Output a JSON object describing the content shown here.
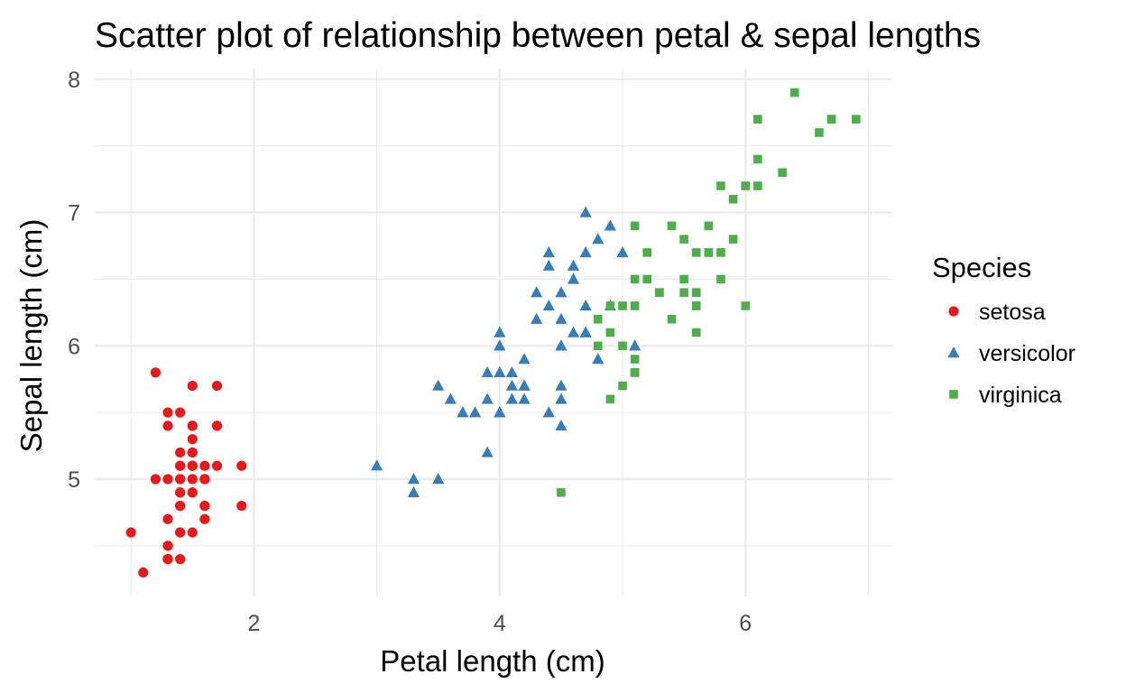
{
  "chart_data": {
    "type": "scatter",
    "title": "Scatter plot of relationship between petal & sepal lengths",
    "xlabel": "Petal length (cm)",
    "ylabel": "Sepal length (cm)",
    "xlim": [
      0.705,
      7.195
    ],
    "ylim": [
      4.12,
      8.08
    ],
    "x_ticks": [
      2,
      4,
      6
    ],
    "y_ticks": [
      5,
      6,
      7,
      8
    ],
    "x_tick_labels": [
      "2",
      "4",
      "6"
    ],
    "y_tick_labels": [
      "5",
      "6",
      "7",
      "8"
    ],
    "grid": true,
    "legend_position": "right",
    "legend_title": "Species",
    "series": [
      {
        "name": "setosa",
        "marker": "circle",
        "color": "#E41A1C",
        "points": [
          [
            1.4,
            5.1
          ],
          [
            1.4,
            4.9
          ],
          [
            1.3,
            4.7
          ],
          [
            1.5,
            4.6
          ],
          [
            1.4,
            5.0
          ],
          [
            1.7,
            5.4
          ],
          [
            1.4,
            4.6
          ],
          [
            1.5,
            5.0
          ],
          [
            1.4,
            4.4
          ],
          [
            1.5,
            4.9
          ],
          [
            1.5,
            5.4
          ],
          [
            1.6,
            4.8
          ],
          [
            1.4,
            4.8
          ],
          [
            1.1,
            4.3
          ],
          [
            1.2,
            5.8
          ],
          [
            1.5,
            5.7
          ],
          [
            1.3,
            5.4
          ],
          [
            1.4,
            5.1
          ],
          [
            1.7,
            5.7
          ],
          [
            1.5,
            5.1
          ],
          [
            1.7,
            5.4
          ],
          [
            1.5,
            5.1
          ],
          [
            1.0,
            4.6
          ],
          [
            1.7,
            5.1
          ],
          [
            1.9,
            4.8
          ],
          [
            1.6,
            5.0
          ],
          [
            1.6,
            5.0
          ],
          [
            1.5,
            5.2
          ],
          [
            1.4,
            5.2
          ],
          [
            1.6,
            4.7
          ],
          [
            1.6,
            4.8
          ],
          [
            1.5,
            5.4
          ],
          [
            1.5,
            5.2
          ],
          [
            1.4,
            5.5
          ],
          [
            1.5,
            4.9
          ],
          [
            1.2,
            5.0
          ],
          [
            1.3,
            5.5
          ],
          [
            1.4,
            4.9
          ],
          [
            1.3,
            4.4
          ],
          [
            1.5,
            5.1
          ],
          [
            1.3,
            5.0
          ],
          [
            1.3,
            4.5
          ],
          [
            1.3,
            4.4
          ],
          [
            1.6,
            5.0
          ],
          [
            1.9,
            5.1
          ],
          [
            1.4,
            4.8
          ],
          [
            1.6,
            5.1
          ],
          [
            1.4,
            4.6
          ],
          [
            1.5,
            5.3
          ],
          [
            1.4,
            5.0
          ]
        ]
      },
      {
        "name": "versicolor",
        "marker": "triangle",
        "color": "#377EB8",
        "points": [
          [
            4.7,
            7.0
          ],
          [
            4.5,
            6.4
          ],
          [
            4.9,
            6.9
          ],
          [
            4.0,
            5.5
          ],
          [
            4.6,
            6.5
          ],
          [
            4.5,
            5.7
          ],
          [
            4.7,
            6.3
          ],
          [
            3.3,
            4.9
          ],
          [
            4.6,
            6.6
          ],
          [
            3.9,
            5.2
          ],
          [
            3.5,
            5.0
          ],
          [
            4.2,
            5.9
          ],
          [
            4.0,
            6.0
          ],
          [
            4.7,
            6.1
          ],
          [
            3.6,
            5.6
          ],
          [
            4.4,
            6.7
          ],
          [
            4.5,
            5.6
          ],
          [
            4.1,
            5.8
          ],
          [
            4.5,
            6.2
          ],
          [
            3.9,
            5.6
          ],
          [
            4.8,
            5.9
          ],
          [
            4.0,
            6.1
          ],
          [
            4.9,
            6.3
          ],
          [
            4.7,
            6.1
          ],
          [
            4.3,
            6.4
          ],
          [
            4.4,
            6.6
          ],
          [
            4.8,
            6.8
          ],
          [
            5.0,
            6.7
          ],
          [
            4.5,
            6.0
          ],
          [
            3.5,
            5.7
          ],
          [
            3.8,
            5.5
          ],
          [
            3.7,
            5.5
          ],
          [
            3.9,
            5.8
          ],
          [
            5.1,
            6.0
          ],
          [
            4.5,
            5.4
          ],
          [
            4.5,
            6.0
          ],
          [
            4.7,
            6.7
          ],
          [
            4.4,
            6.3
          ],
          [
            4.1,
            5.6
          ],
          [
            4.0,
            5.5
          ],
          [
            4.4,
            5.5
          ],
          [
            4.6,
            6.1
          ],
          [
            4.0,
            5.8
          ],
          [
            3.3,
            5.0
          ],
          [
            4.2,
            5.6
          ],
          [
            4.2,
            5.7
          ],
          [
            4.2,
            5.7
          ],
          [
            4.3,
            6.2
          ],
          [
            3.0,
            5.1
          ],
          [
            4.1,
            5.7
          ]
        ]
      },
      {
        "name": "virginica",
        "marker": "square",
        "color": "#4DAF4A",
        "points": [
          [
            6.0,
            6.3
          ],
          [
            5.1,
            5.8
          ],
          [
            5.9,
            7.1
          ],
          [
            5.6,
            6.3
          ],
          [
            5.8,
            6.5
          ],
          [
            6.6,
            7.6
          ],
          [
            4.5,
            4.9
          ],
          [
            6.3,
            7.3
          ],
          [
            5.8,
            6.7
          ],
          [
            6.1,
            7.2
          ],
          [
            5.1,
            6.5
          ],
          [
            5.3,
            6.4
          ],
          [
            5.5,
            6.8
          ],
          [
            5.0,
            5.7
          ],
          [
            5.1,
            5.8
          ],
          [
            5.3,
            6.4
          ],
          [
            5.5,
            6.5
          ],
          [
            6.7,
            7.7
          ],
          [
            6.9,
            7.7
          ],
          [
            5.0,
            6.0
          ],
          [
            5.7,
            6.9
          ],
          [
            4.9,
            5.6
          ],
          [
            6.7,
            7.7
          ],
          [
            4.9,
            6.3
          ],
          [
            5.7,
            6.7
          ],
          [
            6.0,
            7.2
          ],
          [
            4.8,
            6.2
          ],
          [
            4.9,
            6.1
          ],
          [
            5.6,
            6.4
          ],
          [
            5.8,
            7.2
          ],
          [
            6.1,
            7.4
          ],
          [
            6.4,
            7.9
          ],
          [
            5.6,
            6.4
          ],
          [
            5.1,
            6.3
          ],
          [
            5.6,
            6.1
          ],
          [
            6.1,
            7.7
          ],
          [
            5.6,
            6.3
          ],
          [
            5.5,
            6.4
          ],
          [
            4.8,
            6.0
          ],
          [
            5.4,
            6.9
          ],
          [
            5.6,
            6.7
          ],
          [
            5.1,
            6.9
          ],
          [
            5.1,
            5.8
          ],
          [
            5.9,
            6.8
          ],
          [
            5.7,
            6.7
          ],
          [
            5.2,
            6.7
          ],
          [
            5.0,
            6.3
          ],
          [
            5.2,
            6.5
          ],
          [
            5.4,
            6.2
          ],
          [
            5.1,
            5.9
          ]
        ]
      }
    ]
  }
}
